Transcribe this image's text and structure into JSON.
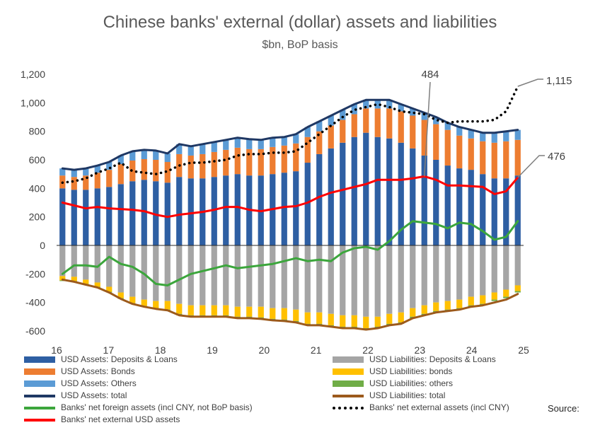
{
  "chart_data": {
    "type": "bar",
    "title": "Chinese banks' external (dollar) assets and liabilities",
    "subtitle": "$bn, BoP basis",
    "ylim": [
      -600,
      1200
    ],
    "yticks": [
      "1,200",
      "1,000",
      "800",
      "600",
      "400",
      "200",
      "0",
      "-200",
      "-400",
      "-600"
    ],
    "ytick_values": [
      1200,
      1000,
      800,
      600,
      400,
      200,
      0,
      -200,
      -400,
      -600
    ],
    "xlim": [
      16,
      25
    ],
    "xticks": [
      "16",
      "17",
      "18",
      "19",
      "20",
      "21",
      "22",
      "23",
      "24",
      "25"
    ],
    "xtick_values": [
      16,
      17,
      18,
      19,
      20,
      21,
      22,
      23,
      24,
      25
    ],
    "annotations": [
      {
        "text": "484",
        "x": 23.0,
        "y": 484
      },
      {
        "text": "1,115",
        "x": 25.0,
        "y": 1115
      },
      {
        "text": "476",
        "x": 25.0,
        "y": 476
      }
    ],
    "source": "Source:",
    "bar_series": [
      {
        "name": "USD Assets: Deposits & Loans",
        "color": "#2E5FA3",
        "stack": "assets",
        "values": [
          400,
          390,
          390,
          400,
          410,
          430,
          450,
          460,
          450,
          440,
          480,
          470,
          470,
          480,
          490,
          500,
          490,
          490,
          500,
          510,
          520,
          580,
          640,
          680,
          720,
          760,
          790,
          760,
          750,
          720,
          680,
          630,
          600,
          560,
          540,
          530,
          500,
          470,
          470,
          490
        ]
      },
      {
        "name": "USD Assets: Bonds",
        "color": "#ED7D31",
        "stack": "assets",
        "values": [
          90,
          90,
          100,
          110,
          120,
          140,
          145,
          145,
          150,
          145,
          160,
          160,
          170,
          175,
          180,
          185,
          185,
          185,
          190,
          190,
          195,
          180,
          160,
          160,
          160,
          160,
          170,
          200,
          210,
          220,
          230,
          250,
          250,
          250,
          230,
          220,
          230,
          250,
          260,
          250
        ]
      },
      {
        "name": "USD Assets: Others",
        "color": "#5B9BD5",
        "stack": "assets",
        "values": [
          50,
          50,
          50,
          50,
          55,
          60,
          65,
          65,
          65,
          60,
          70,
          65,
          70,
          70,
          70,
          70,
          70,
          65,
          65,
          60,
          65,
          70,
          70,
          70,
          70,
          70,
          60,
          60,
          60,
          50,
          50,
          50,
          50,
          50,
          60,
          60,
          60,
          70,
          70,
          70
        ]
      },
      {
        "name": "USD Liabilities: Deposits & Loans",
        "color": "#A5A5A5",
        "stack": "liab",
        "values": [
          -215,
          -220,
          -240,
          -260,
          -290,
          -330,
          -360,
          -380,
          -390,
          -390,
          -410,
          -420,
          -420,
          -420,
          -420,
          -430,
          -430,
          -430,
          -440,
          -440,
          -450,
          -470,
          -470,
          -480,
          -490,
          -490,
          -500,
          -500,
          -480,
          -470,
          -440,
          -420,
          -400,
          -390,
          -380,
          -360,
          -350,
          -330,
          -310,
          -280
        ]
      },
      {
        "name": "USD Liabilities: bonds",
        "color": "#FFC000",
        "stack": "liab",
        "values": [
          -30,
          -30,
          -30,
          -30,
          -35,
          -40,
          -45,
          -45,
          -50,
          -60,
          -70,
          -70,
          -70,
          -70,
          -70,
          -70,
          -70,
          -75,
          -75,
          -80,
          -80,
          -80,
          -80,
          -80,
          -80,
          -80,
          -80,
          -70,
          -70,
          -70,
          -60,
          -60,
          -60,
          -60,
          -60,
          -60,
          -60,
          -50,
          -50,
          -40
        ]
      },
      {
        "name": "USD Liabilities: others",
        "color": "#70AD47",
        "stack": "liab",
        "values": [
          -5,
          -5,
          -5,
          -5,
          -5,
          -5,
          -5,
          -5,
          -5,
          -5,
          -10,
          -10,
          -10,
          -10,
          -10,
          -10,
          -10,
          -10,
          -10,
          -10,
          -10,
          -10,
          -10,
          -10,
          -10,
          -10,
          -10,
          -10,
          -10,
          -10,
          -10,
          -10,
          -10,
          -10,
          -10,
          -10,
          -10,
          -10,
          -10,
          -10
        ]
      }
    ],
    "line_series": [
      {
        "name": "USD Assets: total",
        "color": "#1F3864",
        "style": "solid",
        "values": [
          540,
          530,
          540,
          560,
          585,
          630,
          660,
          670,
          665,
          645,
          710,
          695,
          710,
          725,
          740,
          755,
          745,
          740,
          755,
          760,
          780,
          830,
          870,
          910,
          950,
          990,
          1020,
          1020,
          1020,
          990,
          960,
          930,
          900,
          860,
          830,
          810,
          790,
          790,
          800,
          810
        ]
      },
      {
        "name": "USD Liabilities: total",
        "color": "#9C5A1C",
        "style": "solid",
        "values": [
          -240,
          -255,
          -275,
          -295,
          -330,
          -375,
          -410,
          -430,
          -445,
          -455,
          -490,
          -500,
          -500,
          -500,
          -500,
          -510,
          -510,
          -515,
          -525,
          -530,
          -540,
          -560,
          -560,
          -570,
          -580,
          -580,
          -590,
          -580,
          -560,
          -550,
          -510,
          -490,
          -470,
          -460,
          -450,
          -430,
          -420,
          -400,
          -380,
          -340
        ]
      },
      {
        "name": "Banks' net foreign assets (incl CNY, not BoP basis)",
        "color": "#3CA63C",
        "style": "solid",
        "values": [
          -200,
          -140,
          -140,
          -150,
          -80,
          -130,
          -150,
          -200,
          -270,
          -280,
          -240,
          -200,
          -180,
          -160,
          -140,
          -160,
          -150,
          -140,
          -130,
          -110,
          -90,
          -110,
          -100,
          -110,
          -50,
          -20,
          -10,
          -30,
          30,
          110,
          170,
          160,
          150,
          120,
          160,
          150,
          100,
          40,
          60,
          170
        ]
      },
      {
        "name": "Banks' net external assets (incl CNY)",
        "color": "#000000",
        "style": "dotted",
        "values": [
          440,
          450,
          470,
          510,
          540,
          580,
          520,
          510,
          500,
          520,
          560,
          580,
          580,
          590,
          600,
          630,
          640,
          640,
          650,
          650,
          660,
          720,
          780,
          840,
          900,
          950,
          970,
          990,
          970,
          940,
          930,
          920,
          880,
          860,
          870,
          870,
          870,
          880,
          940,
          1115
        ]
      },
      {
        "name": "Banks' net external USD assets",
        "color": "#FF0000",
        "style": "solid",
        "values": [
          300,
          280,
          260,
          270,
          260,
          255,
          250,
          240,
          215,
          200,
          215,
          225,
          235,
          250,
          270,
          270,
          250,
          240,
          255,
          270,
          275,
          300,
          340,
          370,
          390,
          410,
          430,
          460,
          460,
          460,
          470,
          484,
          460,
          420,
          420,
          415,
          410,
          360,
          380,
          476
        ]
      }
    ],
    "legend": [
      {
        "label": "USD Assets: Deposits & Loans",
        "color": "#2E5FA3",
        "kind": "box"
      },
      {
        "label": "USD Liabilities: Deposits & Loans",
        "color": "#A5A5A5",
        "kind": "box"
      },
      {
        "label": "USD Assets: Bonds",
        "color": "#ED7D31",
        "kind": "box"
      },
      {
        "label": "USD Liabilities: bonds",
        "color": "#FFC000",
        "kind": "box"
      },
      {
        "label": "USD Assets: Others",
        "color": "#5B9BD5",
        "kind": "box"
      },
      {
        "label": "USD Liabilities: others",
        "color": "#70AD47",
        "kind": "box"
      },
      {
        "label": "USD Assets: total",
        "color": "#1F3864",
        "kind": "line"
      },
      {
        "label": "USD Liabilities: total",
        "color": "#9C5A1C",
        "kind": "line"
      },
      {
        "label": "Banks' net foreign assets (incl CNY, not BoP basis)",
        "color": "#3CA63C",
        "kind": "line"
      },
      {
        "label": "Banks' net external assets (incl CNY)",
        "color": "#000000",
        "kind": "dotted"
      },
      {
        "label": "Banks' net external USD assets",
        "color": "#FF0000",
        "kind": "line"
      }
    ]
  }
}
